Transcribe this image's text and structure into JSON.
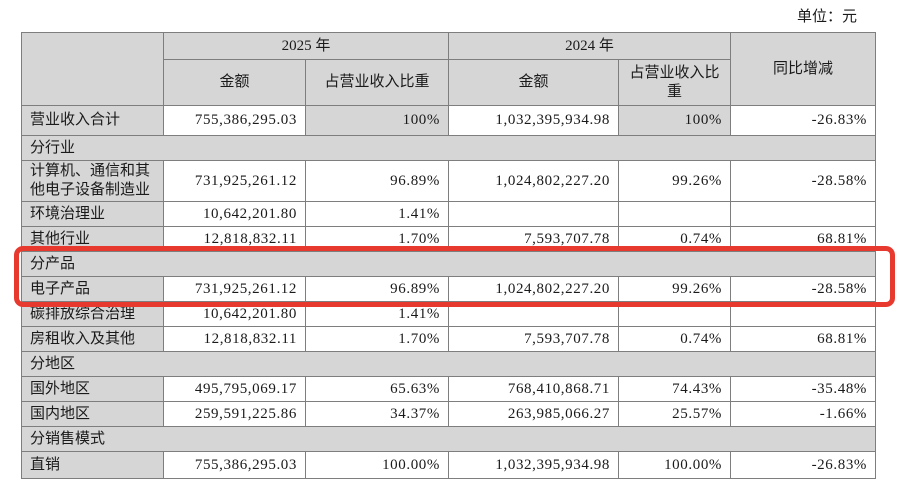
{
  "unit_label": "单位：元",
  "highlight": {
    "color": "#e8392f"
  },
  "table": {
    "header": {
      "year_2025": "2025 年",
      "year_2024": "2024 年",
      "amount_2025": "金额",
      "ratio_2025": "占营业收入比重",
      "amount_2024": "金额",
      "ratio_2024": "占营业收入比重",
      "yoy": "同比增减"
    },
    "rows": [
      {
        "type": "data",
        "label": "营业收入合计",
        "amount_2025": "755,386,295.03",
        "ratio_2025": "100%",
        "amount_2024": "1,032,395,934.98",
        "ratio_2024": "100%",
        "yoy": "-26.83%",
        "gray_ratio": true,
        "first": true
      },
      {
        "type": "section",
        "label": "分行业"
      },
      {
        "type": "data",
        "label": "计算机、通信和其他电子设备制造业",
        "amount_2025": "731,925,261.12",
        "ratio_2025": "96.89%",
        "amount_2024": "1,024,802,227.20",
        "ratio_2024": "99.26%",
        "yoy": "-28.58%"
      },
      {
        "type": "data",
        "label": "环境治理业",
        "amount_2025": "10,642,201.80",
        "ratio_2025": "1.41%",
        "amount_2024": "",
        "ratio_2024": "",
        "yoy": ""
      },
      {
        "type": "data",
        "label": "其他行业",
        "amount_2025": "12,818,832.11",
        "ratio_2025": "1.70%",
        "amount_2024": "7,593,707.78",
        "ratio_2024": "0.74%",
        "yoy": "68.81%"
      },
      {
        "type": "section",
        "label": "分产品",
        "highlighted": true
      },
      {
        "type": "data",
        "label": "电子产品",
        "amount_2025": "731,925,261.12",
        "ratio_2025": "96.89%",
        "amount_2024": "1,024,802,227.20",
        "ratio_2024": "99.26%",
        "yoy": "-28.58%",
        "highlighted": true
      },
      {
        "type": "data",
        "label": "碳排放综合治理",
        "amount_2025": "10,642,201.80",
        "ratio_2025": "1.41%",
        "amount_2024": "",
        "ratio_2024": "",
        "yoy": ""
      },
      {
        "type": "data",
        "label": "房租收入及其他",
        "amount_2025": "12,818,832.11",
        "ratio_2025": "1.70%",
        "amount_2024": "7,593,707.78",
        "ratio_2024": "0.74%",
        "yoy": "68.81%"
      },
      {
        "type": "section",
        "label": "分地区"
      },
      {
        "type": "data",
        "label": "国外地区",
        "amount_2025": "495,795,069.17",
        "ratio_2025": "65.63%",
        "amount_2024": "768,410,868.71",
        "ratio_2024": "74.43%",
        "yoy": "-35.48%"
      },
      {
        "type": "data",
        "label": "国内地区",
        "amount_2025": "259,591,225.86",
        "ratio_2025": "34.37%",
        "amount_2024": "263,985,066.27",
        "ratio_2024": "25.57%",
        "yoy": "-1.66%"
      },
      {
        "type": "section",
        "label": "分销售模式"
      },
      {
        "type": "data",
        "label": "直销",
        "amount_2025": "755,386,295.03",
        "ratio_2025": "100.00%",
        "amount_2024": "1,032,395,934.98",
        "ratio_2024": "100.00%",
        "yoy": "-26.83%",
        "last": true
      }
    ]
  }
}
